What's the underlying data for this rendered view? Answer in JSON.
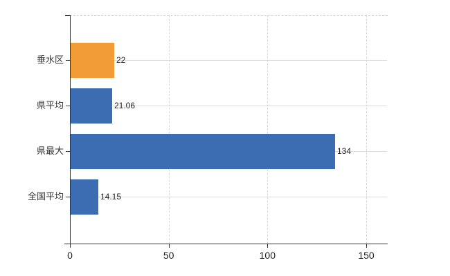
{
  "chart_data": {
    "type": "bar",
    "orientation": "horizontal",
    "title": "",
    "xlabel": "",
    "ylabel": "",
    "categories": [
      "垂水区",
      "県平均",
      "県最大",
      "全国平均"
    ],
    "values": [
      22,
      21.06,
      134,
      14.15
    ],
    "value_labels": [
      "22",
      "21.06",
      "134",
      "14.15"
    ],
    "bar_colors": [
      "#F29C38",
      "#3C6DB3",
      "#3C6DB3",
      "#3C6DB3"
    ],
    "x_ticks": [
      0,
      50,
      100,
      150
    ],
    "x_tick_labels": [
      "0",
      "50",
      "100",
      "150"
    ],
    "xlim": [
      0,
      160.9
    ],
    "grid": true,
    "legend": false,
    "colors": {
      "highlight_bar": "#F29C38",
      "default_bar": "#3C6DB3",
      "gridline": "#d8d8d8",
      "axis": "#333333",
      "text": "#1f1f1f",
      "background": "#ffffff"
    }
  }
}
